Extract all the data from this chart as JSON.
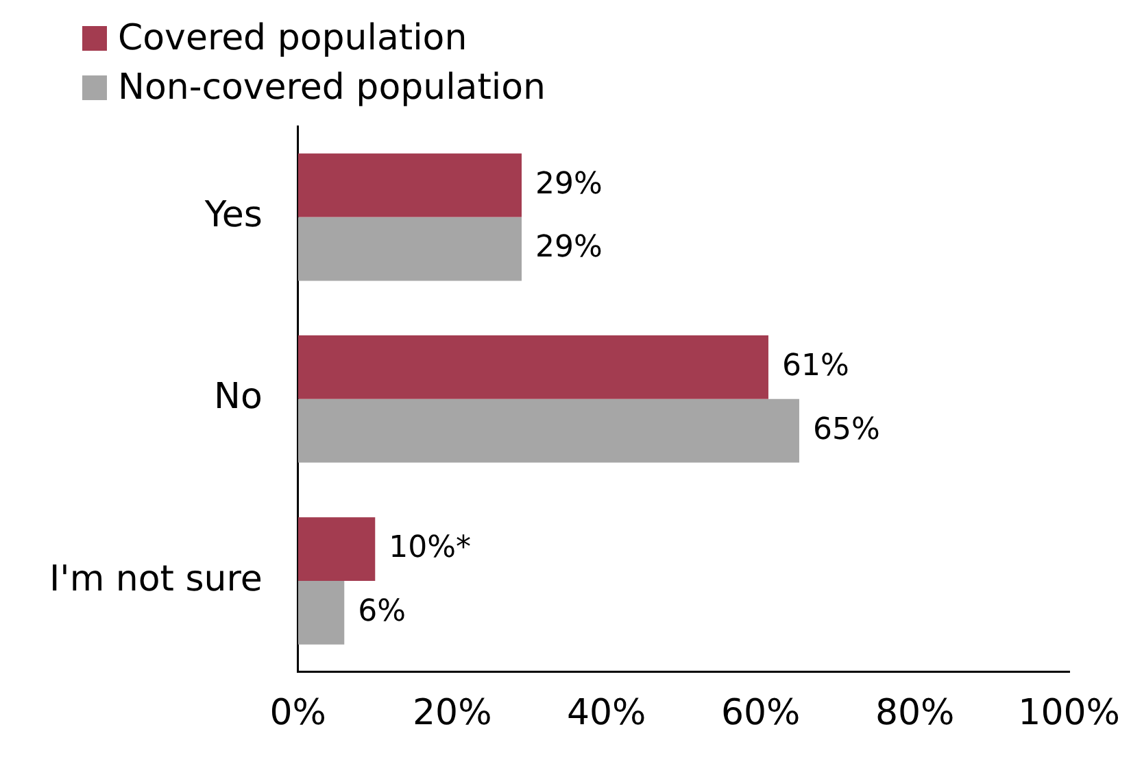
{
  "chart_data": {
    "type": "bar",
    "orientation": "horizontal",
    "categories": [
      "Yes",
      "No",
      "I'm not sure"
    ],
    "series": [
      {
        "name": "Covered population",
        "color": "#a33c50",
        "values": [
          29,
          61,
          10
        ],
        "value_labels": [
          "29%",
          "61%",
          "10%*"
        ]
      },
      {
        "name": "Non-covered population",
        "color": "#a6a6a6",
        "values": [
          29,
          65,
          6
        ],
        "value_labels": [
          "29%",
          "65%",
          "6%"
        ]
      }
    ],
    "xlim": [
      0,
      100
    ],
    "xticks": [
      {
        "value": 0,
        "label": "0%"
      },
      {
        "value": 20,
        "label": "20%"
      },
      {
        "value": 40,
        "label": "40%"
      },
      {
        "value": 60,
        "label": "60%"
      },
      {
        "value": 80,
        "label": "80%"
      },
      {
        "value": 100,
        "label": "100%"
      }
    ],
    "grid": false,
    "legend": "top left"
  }
}
